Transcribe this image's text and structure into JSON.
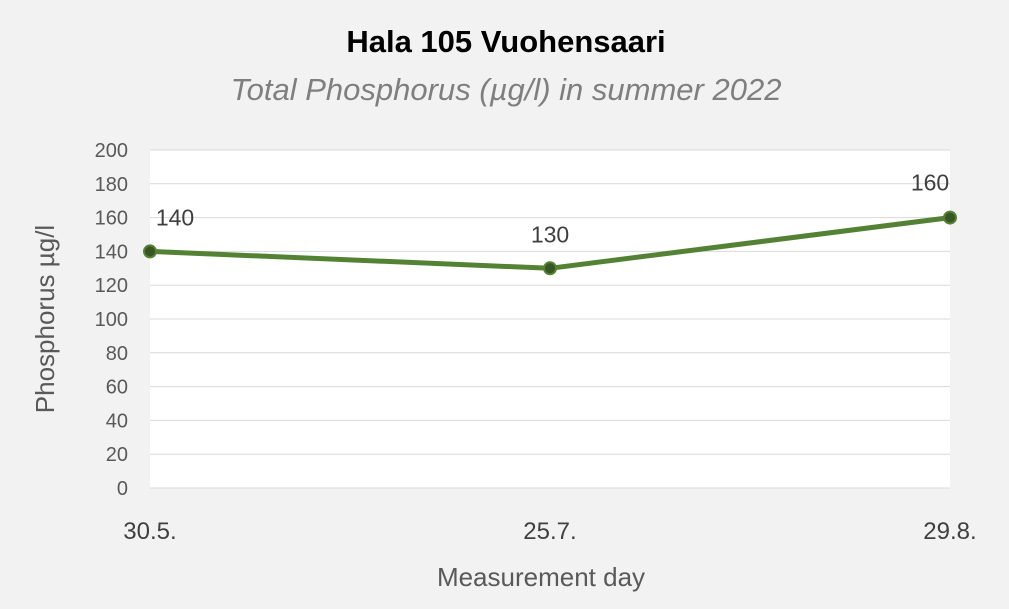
{
  "chart_data": {
    "type": "line",
    "title": "Hala 105 Vuohensaari",
    "subtitle": "Total Phosphorus (µg/l) in summer 2022",
    "xlabel": "Measurement day",
    "ylabel": "Phosphorus µg/l",
    "categories": [
      "30.5.",
      "25.7.",
      "29.8."
    ],
    "series": [
      {
        "values": [
          140,
          130,
          160
        ],
        "color": "#548235",
        "marker_color": "#375623"
      }
    ],
    "data_labels": [
      "140",
      "130",
      "160"
    ],
    "ylim": [
      0,
      200
    ],
    "y_ticks": [
      0,
      20,
      40,
      60,
      80,
      100,
      120,
      140,
      160,
      180,
      200
    ],
    "grid": true,
    "legend": "none"
  }
}
